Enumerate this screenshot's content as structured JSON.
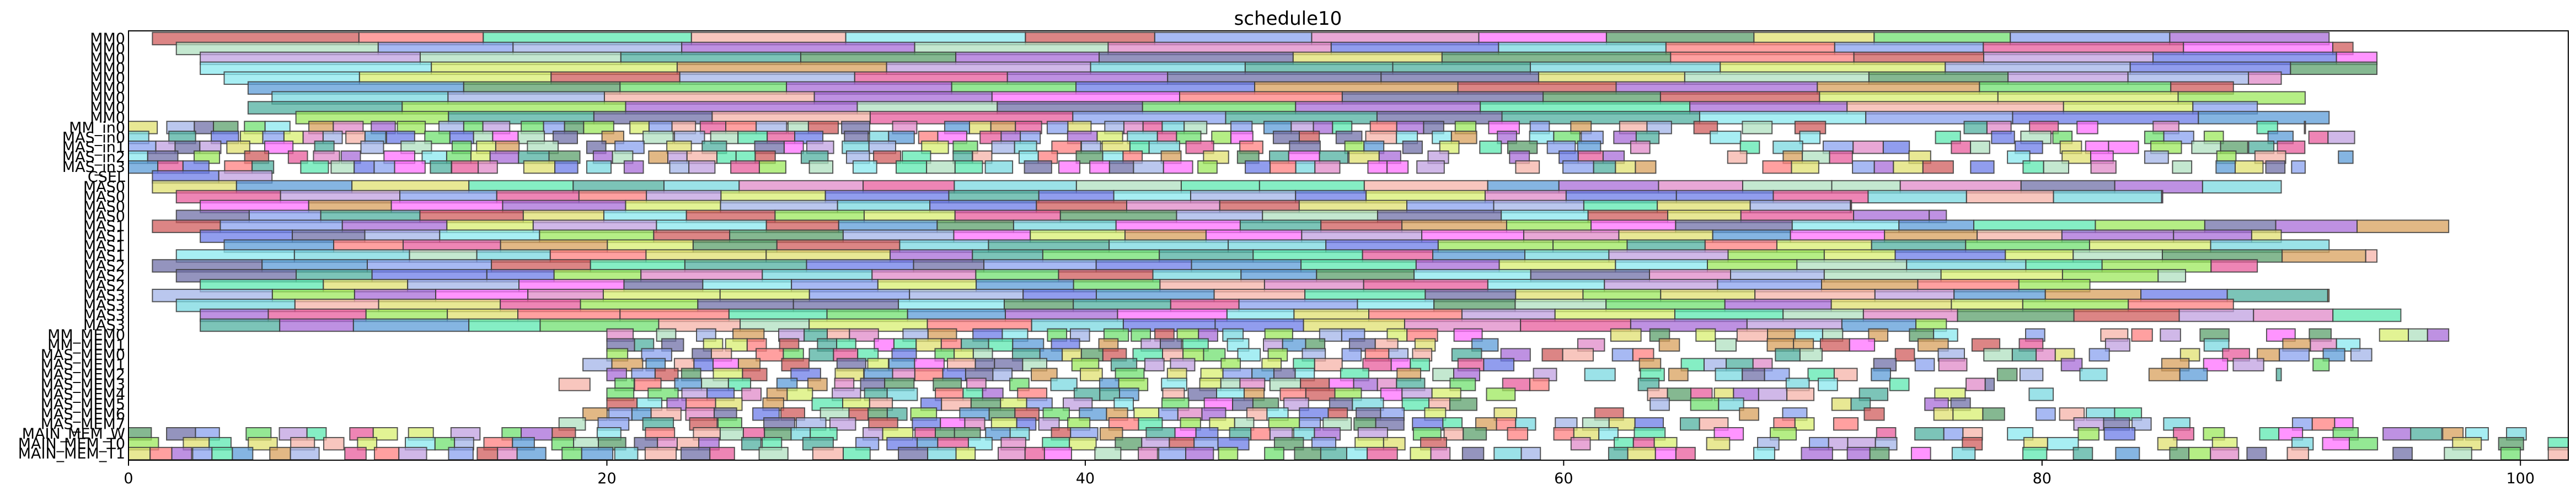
{
  "chart_data": {
    "type": "gantt",
    "title": "schedule10",
    "xlabel": "",
    "ylabel": "",
    "xlim": [
      0,
      102
    ],
    "x_ticks": [
      0,
      20,
      40,
      60,
      80,
      100
    ],
    "grid": false,
    "rows": [
      "MM0",
      "MM0",
      "MM0",
      "MM0",
      "MM0",
      "MM0",
      "MM0",
      "MM0",
      "MM0",
      "MM_in0",
      "MAS_in0",
      "MAS_in1",
      "MAS_in2",
      "MAS_in3",
      "CSEL",
      "MAS0",
      "MAS0",
      "MAS0",
      "MAS0",
      "MAS1",
      "MAS1",
      "MAS1",
      "MAS1",
      "MAS2",
      "MAS2",
      "MAS2",
      "MAS3",
      "MAS3",
      "MAS3",
      "MAS3",
      "MM_MEM0",
      "MM_MEM1",
      "MAS_MEM0",
      "MAS_MEM1",
      "MAS_MEM2",
      "MAS_MEM3",
      "MAS_MEM4",
      "MAS_MEM5",
      "MAS_MEM6",
      "MAS_MEM7",
      "MAIN_MEM_W",
      "MAIN_MEM_T0",
      "MAIN_MEM_T1"
    ],
    "row_spans": [
      {
        "start": 1.0,
        "end": 92.0,
        "avg_len": 7.0
      },
      {
        "start": 2.0,
        "end": 93.0,
        "avg_len": 7.5
      },
      {
        "start": 3.0,
        "end": 94.0,
        "avg_len": 7.5
      },
      {
        "start": 3.0,
        "end": 94.0,
        "avg_len": 8.0
      },
      {
        "start": 4.0,
        "end": 90.0,
        "avg_len": 7.0
      },
      {
        "start": 5.0,
        "end": 88.0,
        "avg_len": 7.0
      },
      {
        "start": 6.0,
        "end": 91.0,
        "avg_len": 7.0
      },
      {
        "start": 5.0,
        "end": 89.0,
        "avg_len": 7.5
      },
      {
        "start": 7.0,
        "end": 92.0,
        "avg_len": 7.0
      },
      {
        "start": 0.0,
        "end": 91.0,
        "avg_len": 1.0
      },
      {
        "start": 0.0,
        "end": 94.0,
        "avg_len": 1.0
      },
      {
        "start": 0.0,
        "end": 91.0,
        "avg_len": 1.0
      },
      {
        "start": 0.0,
        "end": 93.0,
        "avg_len": 1.0
      },
      {
        "start": 0.0,
        "end": 91.0,
        "avg_len": 1.0
      },
      {
        "start": 1.0,
        "end": 6.0,
        "avg_len": 3.0
      },
      {
        "start": 1.0,
        "end": 90.0,
        "avg_len": 4.0
      },
      {
        "start": 2.0,
        "end": 85.0,
        "avg_len": 4.0
      },
      {
        "start": 3.0,
        "end": 72.0,
        "avg_len": 4.0
      },
      {
        "start": 2.0,
        "end": 76.0,
        "avg_len": 4.0
      },
      {
        "start": 1.0,
        "end": 97.0,
        "avg_len": 4.0
      },
      {
        "start": 3.0,
        "end": 90.0,
        "avg_len": 4.0
      },
      {
        "start": 4.0,
        "end": 92.0,
        "avg_len": 4.0
      },
      {
        "start": 2.0,
        "end": 94.0,
        "avg_len": 4.0
      },
      {
        "start": 1.0,
        "end": 89.0,
        "avg_len": 4.0
      },
      {
        "start": 2.0,
        "end": 86.0,
        "avg_len": 4.0
      },
      {
        "start": 3.0,
        "end": 82.0,
        "avg_len": 4.0
      },
      {
        "start": 1.0,
        "end": 92.0,
        "avg_len": 4.0
      },
      {
        "start": 2.0,
        "end": 88.0,
        "avg_len": 4.0
      },
      {
        "start": 3.0,
        "end": 95.0,
        "avg_len": 4.0
      },
      {
        "start": 3.0,
        "end": 76.0,
        "avg_len": 4.0
      },
      {
        "start": 20.0,
        "end": 97.0,
        "avg_len": 1.0
      },
      {
        "start": 20.0,
        "end": 94.0,
        "avg_len": 1.0
      },
      {
        "start": 20.0,
        "end": 94.0,
        "avg_len": 1.0
      },
      {
        "start": 19.0,
        "end": 92.0,
        "avg_len": 1.0
      },
      {
        "start": 20.0,
        "end": 90.0,
        "avg_len": 1.0
      },
      {
        "start": 18.0,
        "end": 78.0,
        "avg_len": 1.0
      },
      {
        "start": 20.0,
        "end": 83.0,
        "avg_len": 1.0
      },
      {
        "start": 20.0,
        "end": 77.0,
        "avg_len": 1.0
      },
      {
        "start": 19.0,
        "end": 86.0,
        "avg_len": 1.0
      },
      {
        "start": 18.0,
        "end": 93.0,
        "avg_len": 1.0
      },
      {
        "start": 0.0,
        "end": 102.0,
        "avg_len": 1.0
      },
      {
        "start": 0.0,
        "end": 102.0,
        "avg_len": 1.0
      },
      {
        "start": 0.0,
        "end": 102.0,
        "avg_len": 1.0
      }
    ],
    "palette": [
      "#a3b4e8",
      "#e85c9c",
      "#d8ef70",
      "#5ce8b0",
      "#8aa2ef",
      "#8ae8ef",
      "#e08ac8",
      "#5ca06c",
      "#a86cd8",
      "#ff8080",
      "#6c7ce8",
      "#9ce85c",
      "#f5b3a8",
      "#5c9cd8",
      "#b0e0c0",
      "#d8a05c",
      "#7070a8",
      "#ff70ff",
      "#7ad8e0",
      "#c0a0e0",
      "#70e070",
      "#e0e070",
      "#d05c5c",
      "#50b0a0"
    ]
  }
}
